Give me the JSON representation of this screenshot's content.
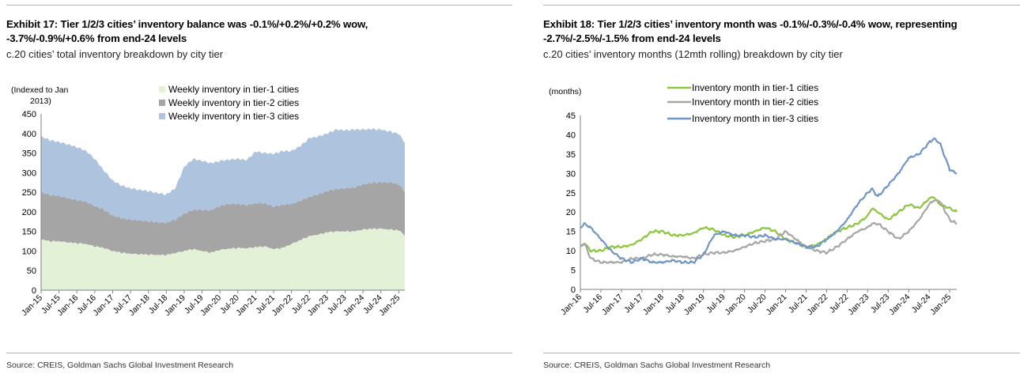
{
  "left": {
    "title_line1": "Exhibit 17: Tier 1/2/3 cities’ inventory balance was -0.1%/+0.2%/+0.2% wow,",
    "title_line2": "-3.7%/-0.9%/+0.6% from end-24 levels",
    "subtitle": "c.20 cities’ total inventory breakdown by city tier",
    "source": "Source: CREIS, Goldman Sachs Global Investment Research"
  },
  "right": {
    "title_line1": "Exhibit 18: Tier 1/2/3 cities’ inventory month was -0.1%/-0.3%/-0.4% wow, representing",
    "title_line2": "-2.7%/-2.5%/-1.5% from end-24 levels",
    "subtitle": "c.20 cities’ inventory months (12mth rolling) breakdown by city tier",
    "source": "Source: CREIS, Goldman Sachs Global Investment Research"
  },
  "colors": {
    "tier1_area": "#e3f1d6",
    "tier2_area": "#a5a5a5",
    "tier3_area": "#aec4de",
    "tier1_line": "#8cc63f",
    "tier2_line": "#a6a6a6",
    "tier3_line": "#6f95c6",
    "axis": "#808080"
  },
  "chart_data": [
    {
      "type": "area",
      "stacked": true,
      "ylabel": "(Indexed to Jan 2013)",
      "ylabel_line1": "(Indexed to Jan",
      "ylabel_line2": "2013)",
      "ylim": [
        0,
        450
      ],
      "yticks": [
        0,
        50,
        100,
        150,
        200,
        250,
        300,
        350,
        400,
        450
      ],
      "xlim": [
        2015.0,
        2025.17
      ],
      "x_tick_labels": [
        "Jan-15",
        "Jul-15",
        "Jan-16",
        "Jul-16",
        "Jan-17",
        "Jul-17",
        "Jan-18",
        "Jul-18",
        "Jan-19",
        "Jul-19",
        "Jan-20",
        "Jul-20",
        "Jan-21",
        "Jul-21",
        "Jan-22",
        "Jul-22",
        "Jan-23",
        "Jul-23",
        "Jan-24",
        "Jul-24",
        "Jan-25"
      ],
      "x_tick_values": [
        2015.0,
        2015.5,
        2016.0,
        2016.5,
        2017.0,
        2017.5,
        2018.0,
        2018.5,
        2019.0,
        2019.5,
        2020.0,
        2020.5,
        2021.0,
        2021.5,
        2022.0,
        2022.5,
        2023.0,
        2023.5,
        2024.0,
        2024.5,
        2025.0
      ],
      "legend_position": "top-center",
      "series": [
        {
          "name": "Weekly inventory in tier-1 cities",
          "x": [
            2015.0,
            2015.25,
            2015.5,
            2015.75,
            2016.0,
            2016.25,
            2016.5,
            2016.75,
            2017.0,
            2017.25,
            2017.5,
            2017.75,
            2018.0,
            2018.25,
            2018.5,
            2018.75,
            2019.0,
            2019.25,
            2019.5,
            2019.75,
            2020.0,
            2020.25,
            2020.5,
            2020.75,
            2021.0,
            2021.25,
            2021.5,
            2021.75,
            2022.0,
            2022.25,
            2022.5,
            2022.75,
            2023.0,
            2023.25,
            2023.5,
            2023.75,
            2024.0,
            2024.25,
            2024.5,
            2024.75,
            2025.0,
            2025.17
          ],
          "values": [
            130,
            125,
            125,
            122,
            120,
            118,
            112,
            108,
            100,
            96,
            93,
            92,
            91,
            90,
            90,
            95,
            100,
            105,
            100,
            96,
            103,
            106,
            108,
            107,
            110,
            112,
            105,
            108,
            118,
            128,
            138,
            142,
            148,
            150,
            150,
            150,
            155,
            157,
            157,
            155,
            153,
            140
          ]
        },
        {
          "name": "Weekly inventory in tier-2 cities",
          "x": [
            2015.0,
            2015.25,
            2015.5,
            2015.75,
            2016.0,
            2016.25,
            2016.5,
            2016.75,
            2017.0,
            2017.25,
            2017.5,
            2017.75,
            2018.0,
            2018.25,
            2018.5,
            2018.75,
            2019.0,
            2019.25,
            2019.5,
            2019.75,
            2020.0,
            2020.25,
            2020.5,
            2020.75,
            2021.0,
            2021.25,
            2021.5,
            2021.75,
            2022.0,
            2022.25,
            2022.5,
            2022.75,
            2023.0,
            2023.25,
            2023.5,
            2023.75,
            2024.0,
            2024.25,
            2024.5,
            2024.75,
            2025.0,
            2025.17
          ],
          "values": [
            120,
            118,
            115,
            113,
            110,
            108,
            103,
            98,
            90,
            88,
            87,
            86,
            85,
            83,
            82,
            85,
            95,
            100,
            105,
            108,
            112,
            114,
            112,
            110,
            112,
            110,
            108,
            110,
            102,
            100,
            100,
            103,
            105,
            108,
            110,
            112,
            115,
            117,
            118,
            120,
            118,
            112
          ]
        },
        {
          "name": "Weekly inventory in tier-3 cities",
          "x": [
            2015.0,
            2015.25,
            2015.5,
            2015.75,
            2016.0,
            2016.25,
            2016.5,
            2016.75,
            2017.0,
            2017.25,
            2017.5,
            2017.75,
            2018.0,
            2018.25,
            2018.5,
            2018.75,
            2019.0,
            2019.25,
            2019.5,
            2019.75,
            2020.0,
            2020.25,
            2020.5,
            2020.75,
            2021.0,
            2021.25,
            2021.5,
            2021.75,
            2022.0,
            2022.25,
            2022.5,
            2022.75,
            2023.0,
            2023.25,
            2023.5,
            2023.75,
            2024.0,
            2024.25,
            2024.5,
            2024.75,
            2025.0,
            2025.17
          ],
          "values": [
            142,
            140,
            138,
            137,
            135,
            130,
            120,
            100,
            90,
            83,
            80,
            78,
            77,
            75,
            72,
            80,
            120,
            130,
            125,
            120,
            115,
            113,
            115,
            115,
            132,
            128,
            135,
            137,
            135,
            140,
            150,
            147,
            147,
            152,
            148,
            148,
            140,
            137,
            135,
            130,
            128,
            125
          ]
        }
      ]
    },
    {
      "type": "line",
      "ylabel": "(months)",
      "ylim": [
        0,
        45
      ],
      "yticks": [
        0,
        5,
        10,
        15,
        20,
        25,
        30,
        35,
        40,
        45
      ],
      "xlim": [
        2016.0,
        2025.17
      ],
      "x_tick_labels": [
        "Jan-16",
        "Jul-16",
        "Jan-17",
        "Jul-17",
        "Jan-18",
        "Jul-18",
        "Jan-19",
        "Jul-19",
        "Jan-20",
        "Jul-20",
        "Jan-21",
        "Jul-21",
        "Jan-22",
        "Jul-22",
        "Jan-23",
        "Jul-23",
        "Jan-24",
        "Jul-24",
        "Jan-25"
      ],
      "x_tick_values": [
        2016.0,
        2016.5,
        2017.0,
        2017.5,
        2018.0,
        2018.5,
        2019.0,
        2019.5,
        2020.0,
        2020.5,
        2021.0,
        2021.5,
        2022.0,
        2022.5,
        2023.0,
        2023.5,
        2024.0,
        2024.5,
        2025.0
      ],
      "legend_position": "top-center",
      "series": [
        {
          "name": "Inventory month in tier-1 cities",
          "x": [
            2016.0,
            2016.1,
            2016.25,
            2016.5,
            2016.75,
            2017.0,
            2017.25,
            2017.5,
            2017.75,
            2018.0,
            2018.25,
            2018.5,
            2018.75,
            2019.0,
            2019.25,
            2019.5,
            2019.75,
            2020.0,
            2020.25,
            2020.5,
            2020.75,
            2021.0,
            2021.25,
            2021.5,
            2021.75,
            2022.0,
            2022.25,
            2022.5,
            2022.75,
            2023.0,
            2023.1,
            2023.25,
            2023.5,
            2023.75,
            2024.0,
            2024.25,
            2024.5,
            2024.6,
            2024.75,
            2025.0,
            2025.17
          ],
          "values": [
            11,
            12,
            10,
            10,
            11,
            11,
            11.5,
            13,
            15,
            15,
            14,
            14,
            14.5,
            16,
            15.5,
            14,
            13.5,
            14,
            15,
            16,
            15,
            13,
            12,
            11,
            11.5,
            13,
            15,
            16,
            17,
            19,
            21,
            20,
            18,
            20,
            22,
            21,
            23.5,
            24,
            22,
            21,
            20
          ]
        },
        {
          "name": "Inventory month in tier-2 cities",
          "x": [
            2016.0,
            2016.1,
            2016.25,
            2016.5,
            2016.75,
            2017.0,
            2017.25,
            2017.5,
            2017.75,
            2018.0,
            2018.25,
            2018.5,
            2018.75,
            2019.0,
            2019.25,
            2019.5,
            2019.75,
            2020.0,
            2020.25,
            2020.5,
            2020.75,
            2021.0,
            2021.25,
            2021.5,
            2021.75,
            2022.0,
            2022.25,
            2022.5,
            2022.75,
            2023.0,
            2023.1,
            2023.25,
            2023.5,
            2023.75,
            2024.0,
            2024.25,
            2024.5,
            2024.6,
            2024.75,
            2025.0,
            2025.17
          ],
          "values": [
            11,
            12,
            8,
            7,
            7,
            7,
            8,
            8,
            9,
            9,
            8.5,
            8.5,
            8,
            9,
            9.5,
            9.5,
            10,
            11,
            12,
            12.5,
            13,
            15,
            13,
            11,
            10,
            9.5,
            11,
            13,
            15,
            16,
            17,
            17,
            15,
            13,
            15,
            18,
            22,
            23,
            23,
            18,
            17
          ]
        },
        {
          "name": "Inventory month in tier-3 cities",
          "x": [
            2016.0,
            2016.1,
            2016.25,
            2016.5,
            2016.75,
            2017.0,
            2017.25,
            2017.5,
            2017.75,
            2018.0,
            2018.25,
            2018.5,
            2018.75,
            2019.0,
            2019.25,
            2019.5,
            2019.75,
            2020.0,
            2020.25,
            2020.5,
            2020.75,
            2021.0,
            2021.25,
            2021.5,
            2021.75,
            2022.0,
            2022.25,
            2022.5,
            2022.75,
            2023.0,
            2023.1,
            2023.25,
            2023.5,
            2023.75,
            2024.0,
            2024.25,
            2024.5,
            2024.6,
            2024.75,
            2025.0,
            2025.17
          ],
          "values": [
            16,
            17,
            16,
            13,
            10,
            8,
            7,
            8,
            7,
            7,
            7.5,
            7,
            7,
            9,
            14,
            15,
            14,
            14,
            13.5,
            14,
            13,
            13,
            12,
            11,
            11,
            13,
            15,
            18,
            22,
            25,
            26,
            24,
            27,
            30,
            34,
            35,
            38,
            39,
            38,
            31,
            30
          ]
        }
      ]
    }
  ]
}
